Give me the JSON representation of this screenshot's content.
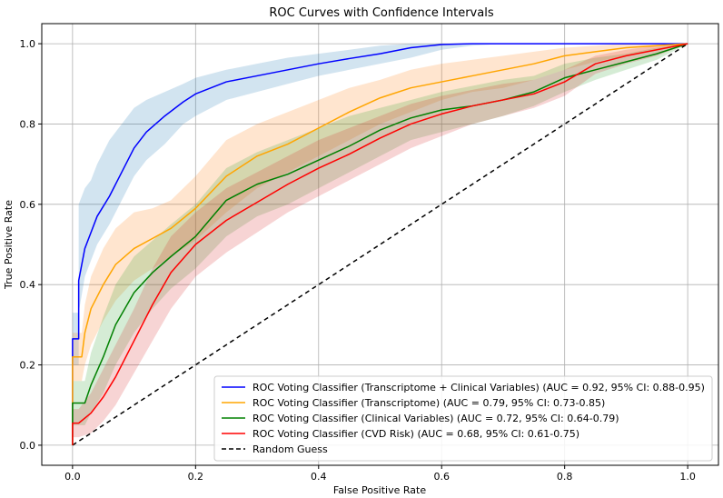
{
  "chart_data": {
    "type": "line",
    "title": "ROC Curves with Confidence Intervals",
    "xlabel": "False Positive Rate",
    "ylabel": "True Positive Rate",
    "xlim": [
      -0.05,
      1.05
    ],
    "ylim": [
      -0.05,
      1.05
    ],
    "xticks": [
      0.0,
      0.2,
      0.4,
      0.6,
      0.8,
      1.0
    ],
    "yticks": [
      0.0,
      0.2,
      0.4,
      0.6,
      0.8,
      1.0
    ],
    "xtick_labels": [
      "0.0",
      "0.2",
      "0.4",
      "0.6",
      "0.8",
      "1.0"
    ],
    "ytick_labels": [
      "0.0",
      "0.2",
      "0.4",
      "0.6",
      "0.8",
      "1.0"
    ],
    "grid": true,
    "legend_position": "bottom-right",
    "series": [
      {
        "name": "ROC Voting Classifier (Transcriptome + Clinical Variables) (AUC = 0.92, 95% CI: 0.88-0.95)",
        "color": "#0000ff",
        "band_color": "#1f77b4",
        "x": [
          0.0,
          0.0,
          0.01,
          0.01,
          0.02,
          0.03,
          0.04,
          0.06,
          0.08,
          0.1,
          0.12,
          0.15,
          0.18,
          0.2,
          0.25,
          0.3,
          0.35,
          0.4,
          0.45,
          0.5,
          0.55,
          0.6,
          0.65,
          0.7,
          0.8,
          0.9,
          1.0
        ],
        "y": [
          0.0,
          0.265,
          0.265,
          0.41,
          0.49,
          0.53,
          0.57,
          0.62,
          0.68,
          0.74,
          0.78,
          0.82,
          0.855,
          0.875,
          0.905,
          0.92,
          0.935,
          0.95,
          0.963,
          0.975,
          0.99,
          0.998,
          1.0,
          1.0,
          1.0,
          1.0,
          1.0
        ],
        "lower": [
          0.0,
          0.2,
          0.2,
          0.33,
          0.42,
          0.46,
          0.5,
          0.55,
          0.61,
          0.67,
          0.71,
          0.75,
          0.8,
          0.82,
          0.86,
          0.88,
          0.9,
          0.92,
          0.935,
          0.95,
          0.965,
          0.985,
          0.995,
          1.0,
          1.0,
          1.0,
          1.0
        ],
        "upper": [
          0.0,
          0.33,
          0.33,
          0.6,
          0.64,
          0.66,
          0.7,
          0.76,
          0.8,
          0.84,
          0.86,
          0.88,
          0.9,
          0.915,
          0.935,
          0.95,
          0.965,
          0.975,
          0.985,
          0.995,
          1.0,
          1.0,
          1.0,
          1.0,
          1.0,
          1.0,
          1.0
        ]
      },
      {
        "name": "ROC Voting Classifier (Transcriptome) (AUC = 0.79, 95% CI: 0.73-0.85)",
        "color": "#ffa500",
        "band_color": "#ff7f0e",
        "x": [
          0.0,
          0.0,
          0.015,
          0.02,
          0.03,
          0.05,
          0.07,
          0.1,
          0.13,
          0.16,
          0.2,
          0.25,
          0.3,
          0.35,
          0.4,
          0.45,
          0.5,
          0.55,
          0.6,
          0.65,
          0.7,
          0.75,
          0.8,
          0.85,
          0.9,
          0.95,
          1.0
        ],
        "y": [
          0.0,
          0.22,
          0.22,
          0.28,
          0.34,
          0.4,
          0.45,
          0.49,
          0.515,
          0.54,
          0.59,
          0.67,
          0.72,
          0.75,
          0.79,
          0.83,
          0.865,
          0.89,
          0.905,
          0.92,
          0.935,
          0.95,
          0.97,
          0.98,
          0.99,
          0.995,
          1.0
        ],
        "lower": [
          0.0,
          0.16,
          0.16,
          0.2,
          0.25,
          0.31,
          0.36,
          0.41,
          0.44,
          0.47,
          0.51,
          0.58,
          0.64,
          0.68,
          0.72,
          0.76,
          0.8,
          0.83,
          0.86,
          0.88,
          0.89,
          0.91,
          0.935,
          0.955,
          0.97,
          0.985,
          1.0
        ],
        "upper": [
          0.0,
          0.28,
          0.28,
          0.35,
          0.42,
          0.49,
          0.54,
          0.58,
          0.59,
          0.61,
          0.67,
          0.76,
          0.8,
          0.83,
          0.86,
          0.89,
          0.91,
          0.935,
          0.95,
          0.96,
          0.97,
          0.98,
          0.99,
          0.995,
          1.0,
          1.0,
          1.0
        ]
      },
      {
        "name": "ROC Voting Classifier (Clinical Variables) (AUC = 0.72, 95% CI: 0.64-0.79)",
        "color": "#008000",
        "band_color": "#2ca02c",
        "x": [
          0.0,
          0.0,
          0.02,
          0.03,
          0.05,
          0.07,
          0.1,
          0.13,
          0.16,
          0.2,
          0.25,
          0.3,
          0.35,
          0.4,
          0.45,
          0.5,
          0.55,
          0.6,
          0.65,
          0.7,
          0.75,
          0.8,
          0.85,
          0.9,
          0.95,
          1.0
        ],
        "y": [
          0.0,
          0.105,
          0.105,
          0.15,
          0.22,
          0.3,
          0.38,
          0.43,
          0.47,
          0.52,
          0.61,
          0.65,
          0.675,
          0.71,
          0.745,
          0.785,
          0.815,
          0.835,
          0.845,
          0.86,
          0.88,
          0.915,
          0.935,
          0.955,
          0.975,
          1.0
        ],
        "lower": [
          0.0,
          0.05,
          0.05,
          0.08,
          0.13,
          0.2,
          0.28,
          0.34,
          0.39,
          0.44,
          0.52,
          0.57,
          0.6,
          0.64,
          0.68,
          0.72,
          0.76,
          0.78,
          0.8,
          0.82,
          0.845,
          0.88,
          0.91,
          0.935,
          0.96,
          1.0
        ],
        "upper": [
          0.0,
          0.16,
          0.16,
          0.23,
          0.32,
          0.4,
          0.47,
          0.51,
          0.55,
          0.6,
          0.69,
          0.73,
          0.76,
          0.79,
          0.82,
          0.84,
          0.86,
          0.88,
          0.895,
          0.91,
          0.92,
          0.95,
          0.965,
          0.975,
          0.99,
          1.0
        ]
      },
      {
        "name": "ROC Voting Classifier (CVD Risk) (AUC = 0.68, 95% CI: 0.61-0.75)",
        "color": "#ff0000",
        "band_color": "#d62728",
        "x": [
          0.0,
          0.0,
          0.01,
          0.03,
          0.05,
          0.07,
          0.1,
          0.13,
          0.16,
          0.2,
          0.25,
          0.3,
          0.35,
          0.4,
          0.45,
          0.5,
          0.55,
          0.6,
          0.65,
          0.7,
          0.75,
          0.8,
          0.85,
          0.9,
          0.95,
          1.0
        ],
        "y": [
          0.0,
          0.055,
          0.055,
          0.08,
          0.12,
          0.17,
          0.26,
          0.35,
          0.43,
          0.5,
          0.56,
          0.605,
          0.65,
          0.69,
          0.725,
          0.765,
          0.8,
          0.825,
          0.845,
          0.86,
          0.875,
          0.905,
          0.95,
          0.97,
          0.985,
          1.0
        ],
        "lower": [
          0.0,
          0.02,
          0.02,
          0.03,
          0.06,
          0.1,
          0.18,
          0.26,
          0.34,
          0.42,
          0.48,
          0.53,
          0.58,
          0.62,
          0.66,
          0.7,
          0.74,
          0.77,
          0.8,
          0.82,
          0.84,
          0.87,
          0.925,
          0.95,
          0.97,
          1.0
        ],
        "upper": [
          0.0,
          0.09,
          0.09,
          0.13,
          0.19,
          0.25,
          0.34,
          0.44,
          0.52,
          0.58,
          0.64,
          0.68,
          0.72,
          0.76,
          0.79,
          0.82,
          0.85,
          0.87,
          0.885,
          0.9,
          0.91,
          0.935,
          0.97,
          0.985,
          0.995,
          1.0
        ]
      }
    ],
    "reference_line": {
      "name": "Random Guess",
      "color": "#000000",
      "x": [
        0.0,
        1.0
      ],
      "y": [
        0.0,
        1.0
      ],
      "style": "dashed"
    }
  }
}
